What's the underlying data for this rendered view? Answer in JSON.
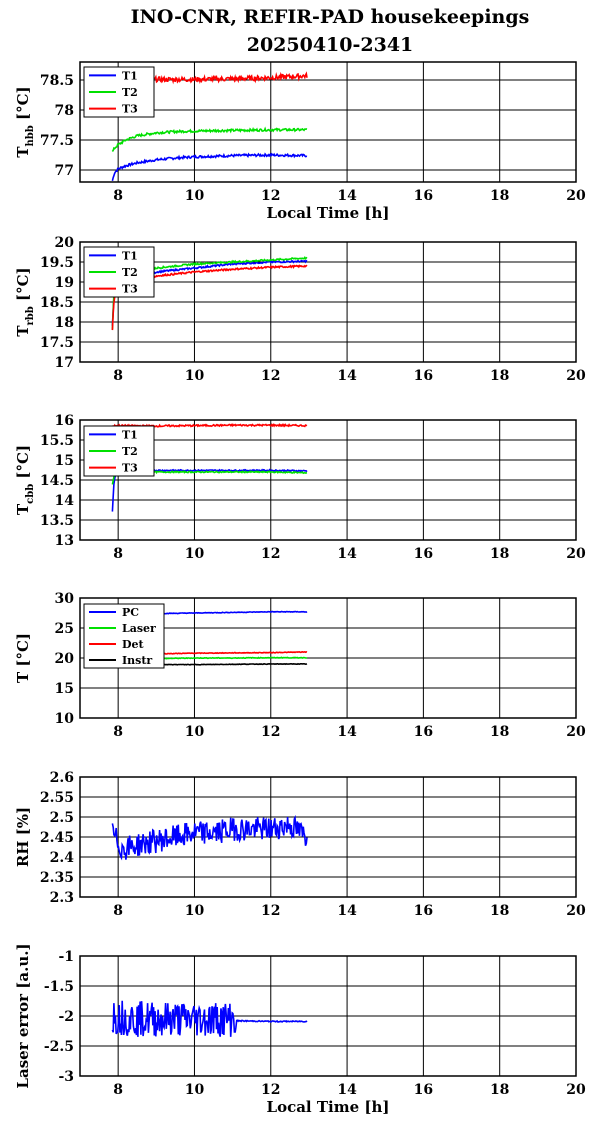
{
  "figure": {
    "title_line1": "INO-CNR, REFIR-PAD housekeepings",
    "title_line2": "20250410-2341"
  },
  "chart_data": [
    {
      "type": "line",
      "ylabel": "Thbb [°C]",
      "ylabel_main": "T",
      "ylabel_sub": "hbb",
      "ylabel_unit": " [°C]",
      "xlabel": "Local Time [h]",
      "xlim": [
        7,
        20
      ],
      "ylim": [
        76.8,
        78.8
      ],
      "xticks": [
        8,
        10,
        12,
        14,
        16,
        18,
        20
      ],
      "yticks": [
        77,
        77.5,
        78,
        78.5
      ],
      "ytick_labels": [
        "77",
        "77.5",
        "78",
        "78.5"
      ],
      "grid": true,
      "legend_position": "top-left",
      "series": [
        {
          "name": "T1",
          "color": "#0000ff",
          "noise": 0.02,
          "x": [
            7.85,
            7.9,
            8.0,
            8.2,
            8.5,
            9.0,
            9.5,
            10.0,
            11.0,
            12.0,
            12.95
          ],
          "y": [
            76.82,
            76.95,
            77.02,
            77.07,
            77.12,
            77.17,
            77.2,
            77.22,
            77.24,
            77.25,
            77.24
          ]
        },
        {
          "name": "T2",
          "color": "#00e000",
          "noise": 0.02,
          "x": [
            7.85,
            7.9,
            8.0,
            8.2,
            8.5,
            9.0,
            9.5,
            10.0,
            11.0,
            12.0,
            12.95
          ],
          "y": [
            77.3,
            77.36,
            77.42,
            77.5,
            77.57,
            77.62,
            77.64,
            77.65,
            77.66,
            77.67,
            77.67
          ]
        },
        {
          "name": "T3",
          "color": "#ff0000",
          "noise": 0.04,
          "x": [
            7.85,
            8.5,
            9.0,
            10.0,
            11.0,
            12.0,
            12.95
          ],
          "y": [
            78.5,
            78.5,
            78.51,
            78.51,
            78.52,
            78.54,
            78.57
          ]
        }
      ]
    },
    {
      "type": "line",
      "ylabel": "Trbb [°C]",
      "ylabel_main": "T",
      "ylabel_sub": "rbb",
      "ylabel_unit": " [°C]",
      "xlabel": "",
      "xlim": [
        7,
        20
      ],
      "ylim": [
        17,
        20
      ],
      "xticks": [
        8,
        10,
        12,
        14,
        16,
        18,
        20
      ],
      "yticks": [
        17,
        17.5,
        18,
        18.5,
        19,
        19.5,
        20
      ],
      "ytick_labels": [
        "17",
        "17.5",
        "18",
        "18.5",
        "19",
        "19.5",
        "20"
      ],
      "grid": true,
      "legend_position": "top-left",
      "series": [
        {
          "name": "T1",
          "color": "#0000ff",
          "noise": 0.02,
          "x": [
            7.85,
            7.88,
            7.9,
            8.0,
            8.5,
            9.0,
            10.0,
            11.0,
            12.0,
            12.95
          ],
          "y": [
            17.9,
            18.5,
            18.7,
            18.85,
            19.05,
            19.25,
            19.35,
            19.45,
            19.5,
            19.52
          ]
        },
        {
          "name": "T2",
          "color": "#00e000",
          "noise": 0.02,
          "x": [
            7.85,
            7.88,
            7.9,
            8.0,
            8.5,
            9.0,
            10.0,
            11.0,
            12.0,
            12.95
          ],
          "y": [
            17.8,
            18.6,
            18.8,
            18.95,
            19.15,
            19.35,
            19.45,
            19.5,
            19.55,
            19.6
          ]
        },
        {
          "name": "T3",
          "color": "#ff0000",
          "noise": 0.02,
          "x": [
            7.85,
            7.88,
            7.9,
            8.0,
            8.5,
            9.0,
            10.0,
            11.0,
            12.0,
            12.95
          ],
          "y": [
            17.8,
            18.4,
            18.6,
            18.75,
            18.95,
            19.15,
            19.25,
            19.32,
            19.37,
            19.4
          ]
        }
      ]
    },
    {
      "type": "line",
      "ylabel": "Tcbb [°C]",
      "ylabel_main": "T",
      "ylabel_sub": "cbb",
      "ylabel_unit": " [°C]",
      "xlabel": "",
      "xlim": [
        7,
        20
      ],
      "ylim": [
        13,
        16
      ],
      "xticks": [
        8,
        10,
        12,
        14,
        16,
        18,
        20
      ],
      "yticks": [
        13,
        13.5,
        14,
        14.5,
        15,
        15.5,
        16
      ],
      "ytick_labels": [
        "13",
        "13.5",
        "14",
        "14.5",
        "15",
        "15.5",
        "16"
      ],
      "grid": true,
      "legend_position": "top-left",
      "series": [
        {
          "name": "T1",
          "color": "#0000ff",
          "noise": 0.015,
          "x": [
            7.85,
            7.88,
            7.9,
            7.95,
            8.0,
            9.0,
            10.0,
            11.0,
            12.0,
            12.95
          ],
          "y": [
            13.7,
            14.3,
            14.5,
            14.68,
            14.72,
            14.74,
            14.74,
            14.74,
            14.74,
            14.73
          ]
        },
        {
          "name": "T2",
          "color": "#00e000",
          "noise": 0.015,
          "x": [
            7.85,
            7.88,
            7.9,
            7.95,
            8.0,
            9.0,
            10.0,
            11.0,
            12.0,
            12.95
          ],
          "y": [
            14.4,
            14.55,
            14.6,
            14.66,
            14.68,
            14.7,
            14.7,
            14.7,
            14.7,
            14.68
          ]
        },
        {
          "name": "T3",
          "color": "#ff0000",
          "noise": 0.02,
          "x": [
            7.85,
            8.0,
            9.0,
            10.0,
            11.0,
            12.0,
            12.95
          ],
          "y": [
            15.85,
            15.86,
            15.85,
            15.86,
            15.87,
            15.87,
            15.86
          ]
        }
      ]
    },
    {
      "type": "line",
      "ylabel": "T [°C]",
      "ylabel_main": "T [°C]",
      "ylabel_sub": "",
      "ylabel_unit": "",
      "xlabel": "",
      "xlim": [
        7,
        20
      ],
      "ylim": [
        10,
        30
      ],
      "xticks": [
        8,
        10,
        12,
        14,
        16,
        18,
        20
      ],
      "yticks": [
        10,
        15,
        20,
        25,
        30
      ],
      "ytick_labels": [
        "10",
        "15",
        "20",
        "25",
        "30"
      ],
      "grid": true,
      "legend_position": "top-left",
      "series": [
        {
          "name": "PC",
          "color": "#0000ff",
          "noise": 0.05,
          "x": [
            7.85,
            9.0,
            10.0,
            11.0,
            12.0,
            12.95
          ],
          "y": [
            27.3,
            27.4,
            27.5,
            27.6,
            27.7,
            27.7
          ]
        },
        {
          "name": "Laser",
          "color": "#00e000",
          "noise": 0.05,
          "x": [
            7.85,
            9.0,
            10.0,
            11.0,
            12.0,
            12.95
          ],
          "y": [
            19.8,
            19.9,
            20.0,
            20.0,
            20.05,
            20.05
          ]
        },
        {
          "name": "Det",
          "color": "#ff0000",
          "noise": 0.05,
          "x": [
            7.85,
            9.0,
            10.0,
            11.0,
            12.0,
            12.95
          ],
          "y": [
            20.6,
            20.7,
            20.8,
            20.85,
            20.9,
            21.0
          ]
        },
        {
          "name": "Instr",
          "color": "#000000",
          "noise": 0.04,
          "x": [
            7.85,
            9.0,
            10.0,
            11.0,
            12.0,
            12.95
          ],
          "y": [
            18.8,
            18.9,
            18.9,
            18.95,
            19.0,
            19.0
          ]
        }
      ]
    },
    {
      "type": "line",
      "ylabel": "RH [%]",
      "ylabel_main": "RH [%]",
      "ylabel_sub": "",
      "ylabel_unit": "",
      "xlabel": "",
      "xlim": [
        7,
        20
      ],
      "ylim": [
        2.3,
        2.6
      ],
      "xticks": [
        8,
        10,
        12,
        14,
        16,
        18,
        20
      ],
      "yticks": [
        2.3,
        2.35,
        2.4,
        2.45,
        2.5,
        2.55,
        2.6
      ],
      "ytick_labels": [
        "2.3",
        "2.35",
        "2.4",
        "2.45",
        "2.5",
        "2.55",
        "2.6"
      ],
      "grid": true,
      "legend_position": "none",
      "series": [
        {
          "name": "",
          "color": "#0000ff",
          "noise": 0.03,
          "x": [
            7.85,
            8.1,
            8.5,
            9.0,
            9.5,
            10.0,
            10.5,
            11.0,
            11.5,
            12.0,
            12.5,
            12.95
          ],
          "y": [
            2.46,
            2.42,
            2.43,
            2.44,
            2.45,
            2.46,
            2.46,
            2.47,
            2.47,
            2.47,
            2.48,
            2.45
          ]
        }
      ]
    },
    {
      "type": "line",
      "ylabel": "Laser error [a.u.]",
      "ylabel_main": "Laser error [a.u.]",
      "ylabel_sub": "",
      "ylabel_unit": "",
      "xlabel": "Local Time [h]",
      "xlim": [
        7,
        20
      ],
      "ylim": [
        -3,
        -1
      ],
      "xticks": [
        8,
        10,
        12,
        14,
        16,
        18,
        20
      ],
      "yticks": [
        -3,
        -2.5,
        -2,
        -1.5,
        -1
      ],
      "ytick_labels": [
        "-3",
        "-2.5",
        "-2",
        "-1.5",
        "-1"
      ],
      "grid": true,
      "legend_position": "none",
      "series": [
        {
          "name": "",
          "color": "#0000ff",
          "noise": 0.3,
          "noise_until": 11.1,
          "x": [
            7.85,
            8.5,
            9.5,
            10.5,
            11.05,
            11.1,
            12.0,
            12.95
          ],
          "y": [
            -2.0,
            -2.05,
            -2.05,
            -2.05,
            -2.05,
            -2.08,
            -2.09,
            -2.09
          ]
        }
      ]
    }
  ]
}
